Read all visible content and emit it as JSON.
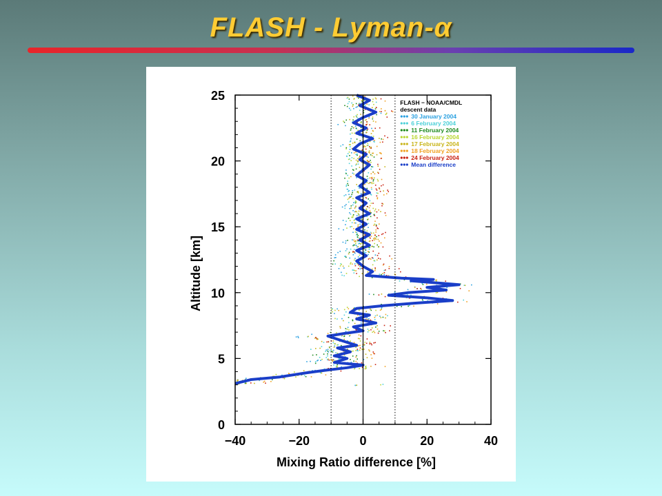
{
  "slide": {
    "title": "FLASH - Lyman-α"
  },
  "chart_data": {
    "type": "scatter",
    "xlabel": "Mixing Ratio difference [%]",
    "ylabel": "Altitude [km]",
    "xlim": [
      -40,
      40
    ],
    "ylim": [
      0,
      25
    ],
    "x_ticks": [
      -40,
      -20,
      0,
      20,
      40
    ],
    "x_tick_labels": [
      "−40",
      "−20",
      "0",
      "20",
      "40"
    ],
    "y_ticks": [
      0,
      5,
      10,
      15,
      20,
      25
    ],
    "y_tick_labels": [
      "0",
      "5",
      "10",
      "15",
      "20",
      "25"
    ],
    "reference_lines": {
      "solid": [
        0
      ],
      "dotted": [
        -10,
        10
      ]
    },
    "legend": {
      "placement": "top-right",
      "header": [
        "FLASH − NOAA/CMDL",
        "descent data"
      ],
      "entries": [
        {
          "label": "30 January 2004",
          "color": "#2aa0e0"
        },
        {
          "label": "6 February 2004",
          "color": "#4cd0d8"
        },
        {
          "label": "11 February 2004",
          "color": "#1f8a1f"
        },
        {
          "label": "16 February 2004",
          "color": "#b8d630"
        },
        {
          "label": "17 February 2004",
          "color": "#c8b418"
        },
        {
          "label": "18 February 2004",
          "color": "#f0a020"
        },
        {
          "label": "24 February 2004",
          "color": "#c82010"
        },
        {
          "label": "Mean difference",
          "color": "#1a3ec8"
        }
      ]
    },
    "mean_difference": {
      "name": "Mean difference",
      "color": "#1a3ec8",
      "points": [
        [
          -2,
          25
        ],
        [
          2,
          24.6
        ],
        [
          -1,
          24.2
        ],
        [
          4,
          23.7
        ],
        [
          0,
          23.3
        ],
        [
          -3,
          22.9
        ],
        [
          1,
          22.5
        ],
        [
          -2,
          22.1
        ],
        [
          3,
          21.7
        ],
        [
          -1,
          21.3
        ],
        [
          -3,
          20.9
        ],
        [
          1,
          20.5
        ],
        [
          -1,
          20.1
        ],
        [
          2,
          19.7
        ],
        [
          0,
          19.3
        ],
        [
          -2,
          18.9
        ],
        [
          1,
          18.5
        ],
        [
          -1,
          18.1
        ],
        [
          2,
          17.6
        ],
        [
          -2,
          17.2
        ],
        [
          1,
          16.8
        ],
        [
          -1,
          16.4
        ],
        [
          2,
          16.0
        ],
        [
          -2,
          15.6
        ],
        [
          1,
          15.2
        ],
        [
          -2,
          14.8
        ],
        [
          2,
          14.4
        ],
        [
          -1,
          14.0
        ],
        [
          2,
          13.6
        ],
        [
          -2,
          13.2
        ],
        [
          1,
          12.8
        ],
        [
          -2,
          12.4
        ],
        [
          0,
          12.0
        ],
        [
          3,
          11.6
        ],
        [
          1,
          11.3
        ],
        [
          12,
          11.1
        ],
        [
          22,
          11.0
        ],
        [
          15,
          10.9
        ],
        [
          30,
          10.6
        ],
        [
          20,
          10.4
        ],
        [
          26,
          10.2
        ],
        [
          14,
          10.0
        ],
        [
          8,
          9.8
        ],
        [
          20,
          9.6
        ],
        [
          28,
          9.4
        ],
        [
          16,
          9.2
        ],
        [
          6,
          9.0
        ],
        [
          -2,
          8.8
        ],
        [
          -4,
          8.5
        ],
        [
          2,
          8.3
        ],
        [
          -2,
          8.0
        ],
        [
          4,
          7.7
        ],
        [
          -3,
          7.4
        ],
        [
          0,
          7.1
        ],
        [
          -6,
          6.9
        ],
        [
          -11,
          6.7
        ],
        [
          -6,
          6.3
        ],
        [
          -2,
          6.0
        ],
        [
          -8,
          5.8
        ],
        [
          -4,
          5.5
        ],
        [
          -9,
          5.2
        ],
        [
          -5,
          5.0
        ],
        [
          -9,
          4.7
        ],
        [
          0,
          4.5
        ],
        [
          -5,
          4.3
        ],
        [
          -12,
          4.1
        ],
        [
          -18,
          3.9
        ],
        [
          -26,
          3.6
        ],
        [
          -35,
          3.4
        ],
        [
          -40,
          3.1
        ]
      ]
    }
  }
}
